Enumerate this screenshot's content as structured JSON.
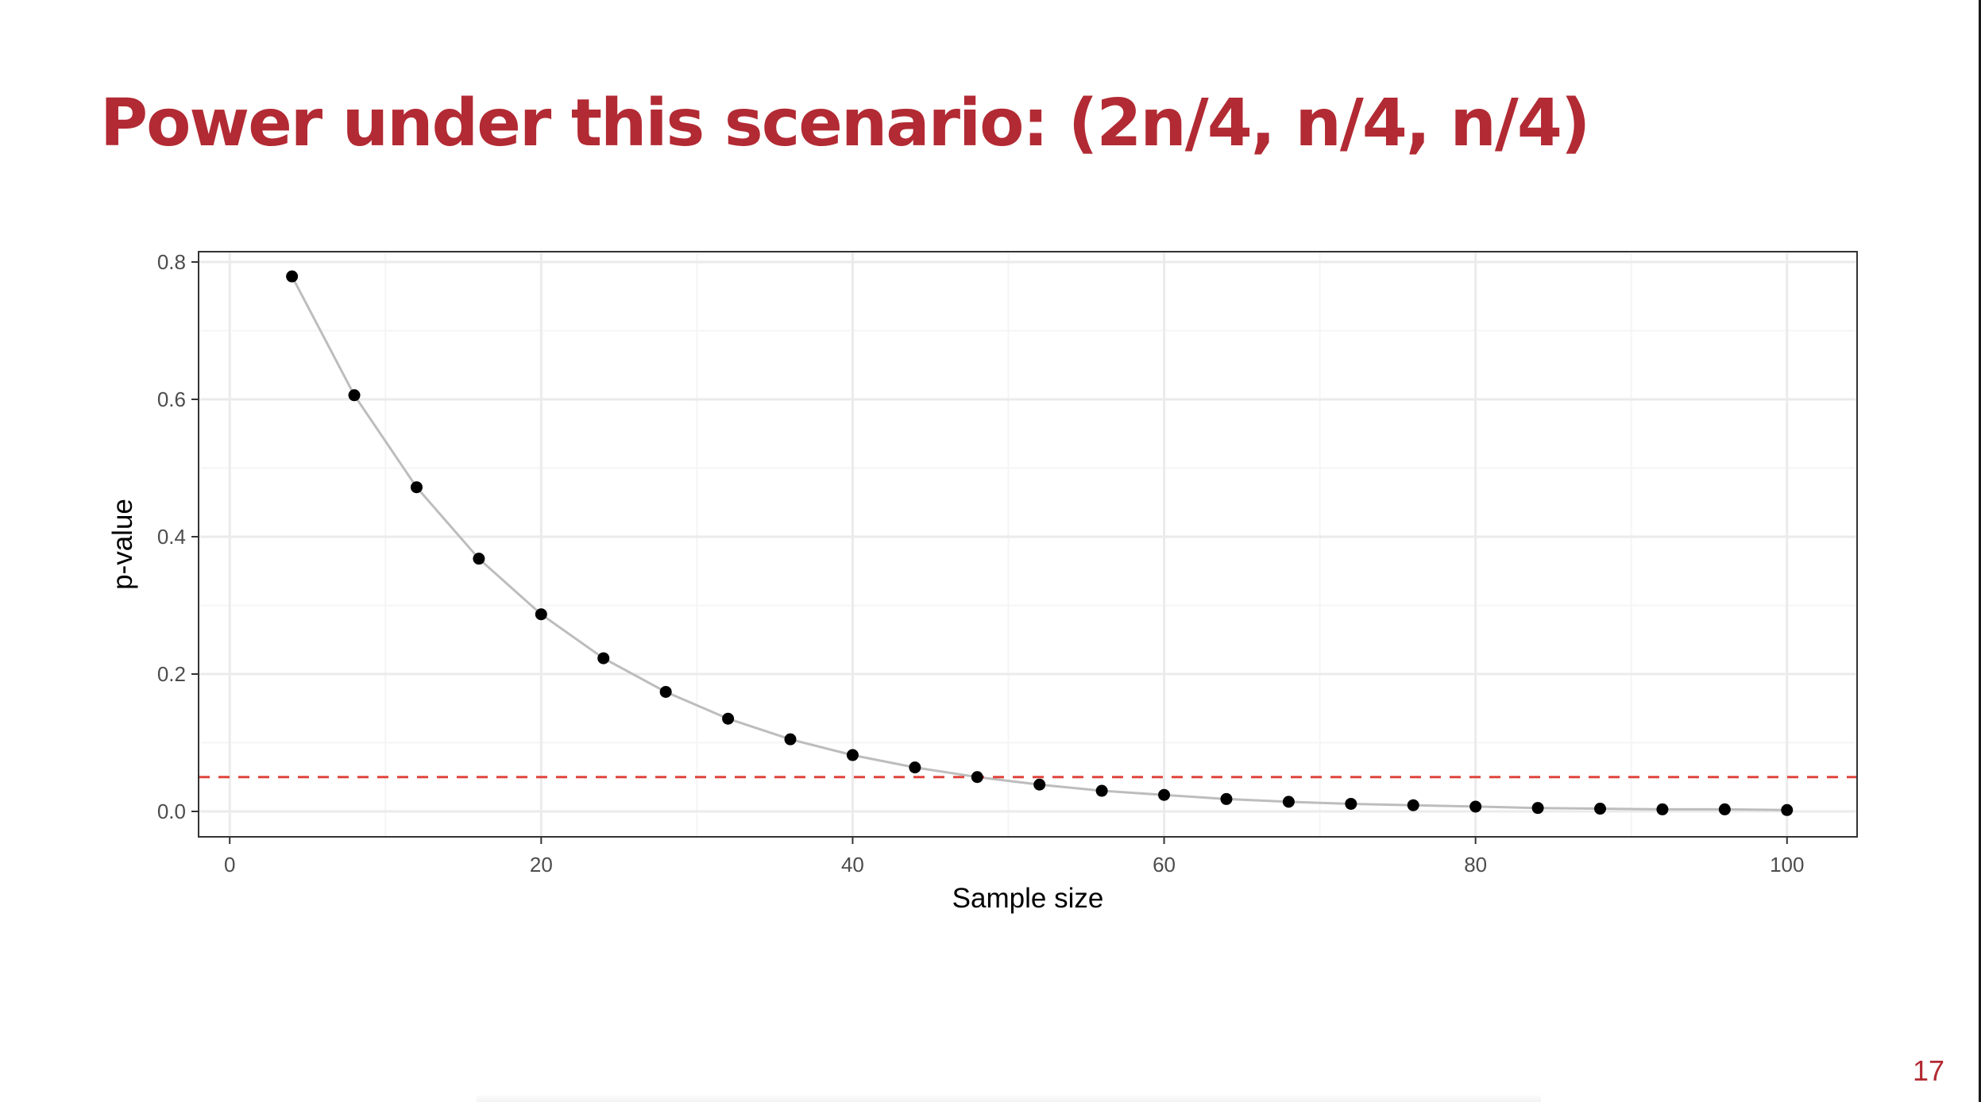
{
  "slide": {
    "title": "Power under this scenario: (2n/4, n/4, n/4)",
    "page_number": "17"
  },
  "chart_data": {
    "type": "line",
    "xlabel": "Sample size",
    "ylabel": "p-value",
    "xlim": [
      -2,
      104.5
    ],
    "ylim": [
      -0.037,
      0.815
    ],
    "x_ticks": [
      0,
      20,
      40,
      60,
      80,
      100
    ],
    "x_tick_labels": [
      "0",
      "20",
      "40",
      "60",
      "80",
      "100"
    ],
    "y_ticks": [
      0.0,
      0.2,
      0.4,
      0.6,
      0.8
    ],
    "y_tick_labels": [
      "0.0",
      "0.2",
      "0.4",
      "0.6",
      "0.8"
    ],
    "x_minor_ticks": [
      10,
      30,
      50,
      70,
      90
    ],
    "y_minor_ticks": [
      0.1,
      0.3,
      0.5,
      0.7
    ],
    "grid": true,
    "series": [
      {
        "x": [
          4,
          8,
          12,
          16,
          20,
          24,
          28,
          32,
          36,
          40,
          44,
          48,
          52,
          56,
          60,
          64,
          68,
          72,
          76,
          80,
          84,
          88,
          92,
          96,
          100
        ],
        "y": [
          0.779,
          0.606,
          0.472,
          0.368,
          0.287,
          0.223,
          0.174,
          0.135,
          0.105,
          0.082,
          0.064,
          0.05,
          0.039,
          0.03,
          0.024,
          0.018,
          0.014,
          0.011,
          0.009,
          0.007,
          0.005,
          0.004,
          0.003,
          0.003,
          0.002
        ],
        "line_color": "#bdbdbd",
        "point_color": "#000000"
      }
    ],
    "reference_line": {
      "y": 0.05,
      "style": "dashed",
      "color": "#e0443c"
    },
    "colors": {
      "panel_border": "#333333",
      "grid_major": "#ebebeb",
      "grid_minor": "#f5f5f5"
    }
  }
}
